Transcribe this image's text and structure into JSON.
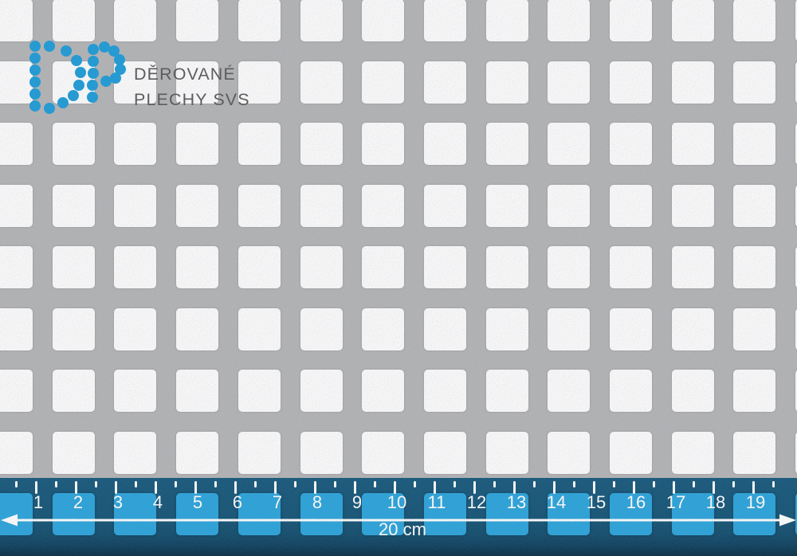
{
  "logo": {
    "line1": "DĚROVANÉ",
    "line2": "PLECHY SVS"
  },
  "ruler": {
    "numbers": [
      "1",
      "2",
      "3",
      "4",
      "5",
      "6",
      "7",
      "8",
      "9",
      "10",
      "11",
      "12",
      "13",
      "14",
      "15",
      "16",
      "17",
      "18",
      "19"
    ],
    "label": "20 cm"
  },
  "colors": {
    "sheet_gray": "#b4b5b7",
    "hole_white": "#fdfdfe",
    "band_blue": "#135375",
    "hole_blue": "#2aa4dc",
    "logo_blue": "#1e9cd8",
    "logo_text": "#59595b",
    "ruler_white": "#ffffff"
  }
}
